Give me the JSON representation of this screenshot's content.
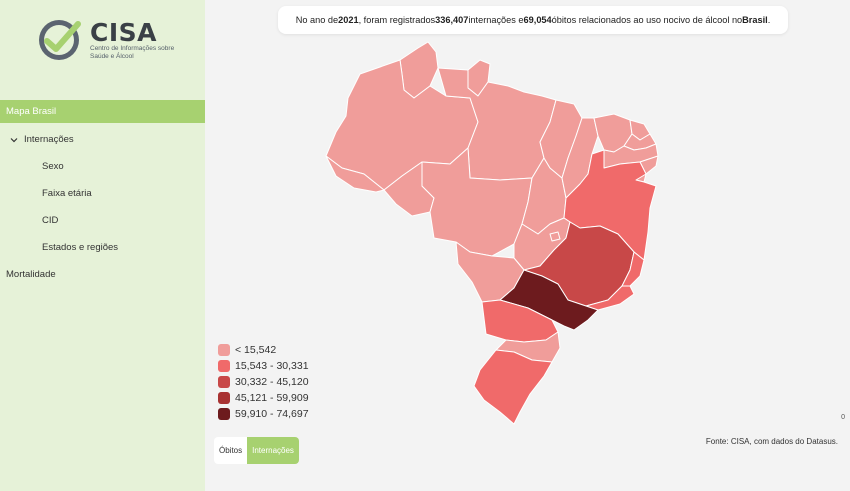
{
  "brand": {
    "name": "CISA",
    "subtitle": "Centro de Informações sobre Saúde e Álcool",
    "accent": "#a7d170"
  },
  "nav": [
    {
      "label": "Mapa Brasil",
      "active": true
    },
    {
      "label": "Internações",
      "expanded": true
    },
    {
      "label": "Sexo"
    },
    {
      "label": "Faixa etária"
    },
    {
      "label": "CID"
    },
    {
      "label": "Estados e regiões"
    },
    {
      "label": "Mortalidade"
    }
  ],
  "headline": {
    "p1": "No ano de ",
    "year": "2021",
    "p2": ", foram registrados ",
    "hosp": "336,407",
    "p3": " internações e ",
    "deaths": "69,054",
    "p4": " óbitos relacionados ao uso nocivo de álcool no ",
    "place": "Brasil",
    "p5": "."
  },
  "legend": [
    {
      "label": "< 15,542",
      "color": "#f09d9a"
    },
    {
      "label": "15,543 - 30,331",
      "color": "#f06a6a"
    },
    {
      "label": "30,332 - 45,120",
      "color": "#c84848"
    },
    {
      "label": "45,121 - 59,909",
      "color": "#a83232"
    },
    {
      "label": "59,910 - 74,697",
      "color": "#6d1b1e"
    }
  ],
  "toggle": {
    "option1": "Óbitos",
    "option2": "Internações",
    "selected": "Internações"
  },
  "source": "Fonte: CISA, com dados do Datasus.",
  "corner_value": "0",
  "map_legend_classes": {
    "RR": 0,
    "AP": 0,
    "AM": 0,
    "PA": 0,
    "AC": 0,
    "RO": 0,
    "MT": 0,
    "TO": 0,
    "MA": 0,
    "PI": 0,
    "CE": 0,
    "RN": 0,
    "PB": 0,
    "PE": 0,
    "AL": 0,
    "SE": 0,
    "BA": 1,
    "GO": 0,
    "DF": 0,
    "MS": 0,
    "MG": 2,
    "ES": 1,
    "RJ": 1,
    "SP": 4,
    "PR": 1,
    "SC": 0,
    "RS": 1
  }
}
